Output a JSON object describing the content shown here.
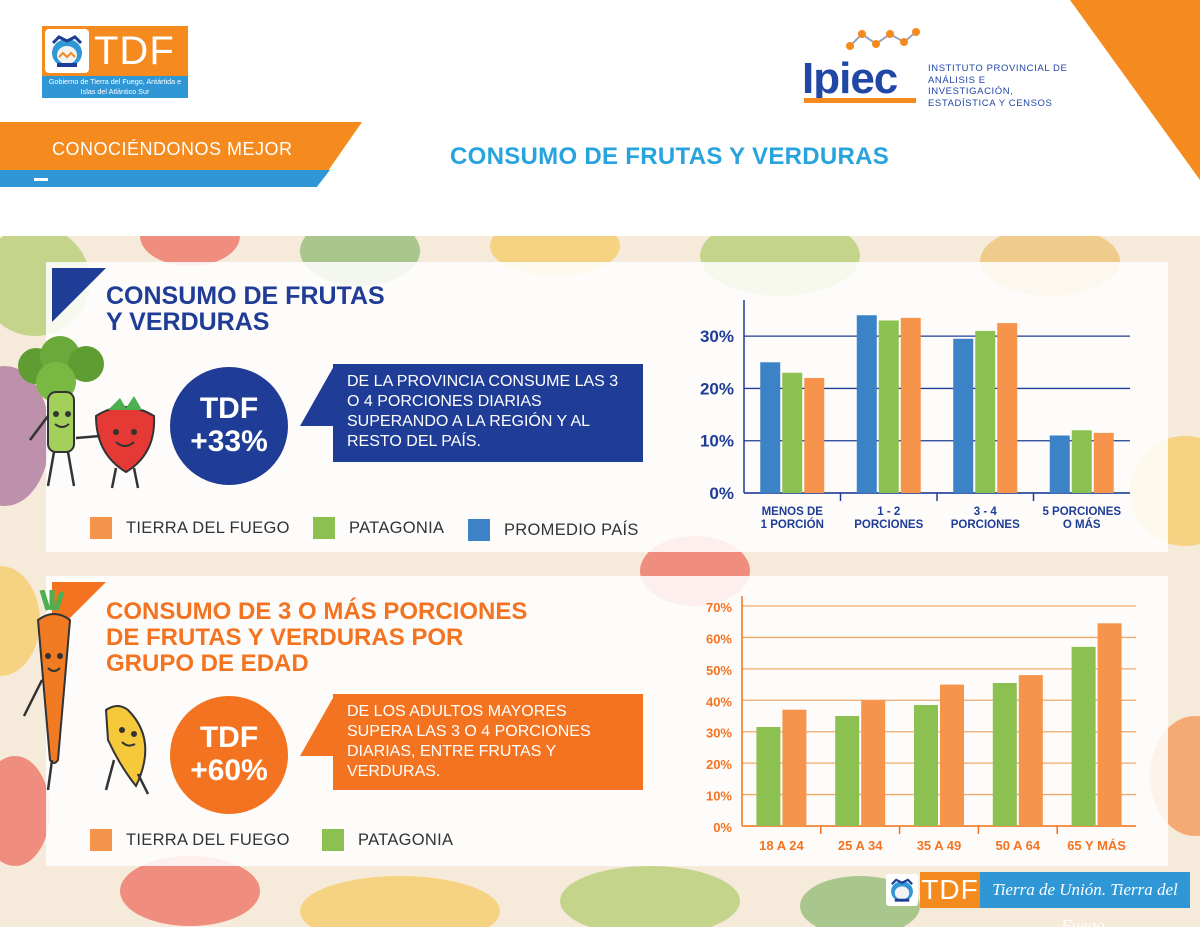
{
  "header": {
    "tdf_logo_text": "TDF",
    "tdf_logo_subtitle": "Gobierno de Tierra del Fuego, Antártida e Islas del Atlántico Sur",
    "ipiec_logo_text": "Ipiec",
    "ipiec_institute": [
      "INSTITUTO PROVINCIAL DE",
      "ANÁLISIS E INVESTIGACIÓN,",
      "ESTADÍSTICA Y CENSOS"
    ],
    "section_label": "CONOCIÉNDONOS MEJOR",
    "title": "CONSUMO DE FRUTAS Y VERDURAS"
  },
  "panel1": {
    "title_lines": [
      "CONSUMO DE FRUTAS",
      "Y VERDURAS"
    ],
    "highlight_lines": [
      "TDF",
      "+33%"
    ],
    "description": "DE LA PROVINCIA CONSUME LAS 3 O 4 PORCIONES DIARIAS SUPERANDO A LA REGIÓN Y AL RESTO DEL PAÍS.",
    "legend": [
      "TIERRA DEL FUEGO",
      "PATAGONIA",
      "PROMEDIO PAÍS"
    ]
  },
  "panel2": {
    "title_lines": [
      "CONSUMO DE 3 O MÁS PORCIONES",
      "DE FRUTAS Y VERDURAS POR",
      "GRUPO DE EDAD"
    ],
    "highlight_lines": [
      "TDF",
      "+60%"
    ],
    "description": "DE LOS ADULTOS MAYORES SUPERA LAS 3 O 4 PORCIONES DIARIAS, ENTRE FRUTAS Y VERDURAS.",
    "legend": [
      "TIERRA DEL FUEGO",
      "PATAGONIA"
    ]
  },
  "footer": {
    "logo_text": "TDF",
    "slogan": "Tierra de Unión. Tierra del Fuego."
  },
  "colors": {
    "tierra_del_fuego": "#f5944a",
    "patagonia": "#8cc152",
    "promedio_pais": "#3b82c7",
    "navy": "#1f3c96",
    "orange": "#f47320",
    "cyan": "#27a3de"
  },
  "chart_data": [
    {
      "type": "bar",
      "categories": [
        [
          "MENOS DE",
          "1 PORCIÓN"
        ],
        [
          "1 - 2",
          "PORCIONES"
        ],
        [
          "3 - 4",
          "PORCIONES"
        ],
        [
          "5 PORCIONES",
          "O MÁS"
        ]
      ],
      "series": [
        {
          "name": "PROMEDIO PAÍS",
          "color": "#3b82c7",
          "values": [
            25,
            34,
            29.5,
            11
          ]
        },
        {
          "name": "PATAGONIA",
          "color": "#8cc152",
          "values": [
            23,
            33,
            31,
            12
          ]
        },
        {
          "name": "TIERRA DEL FUEGO",
          "color": "#f5944a",
          "values": [
            22,
            33.5,
            32.5,
            11.5
          ]
        }
      ],
      "yticks": [
        "0%",
        "10%",
        "20%",
        "30%"
      ],
      "ylim": [
        0,
        35
      ],
      "grid": true
    },
    {
      "type": "bar",
      "categories": [
        "18 A 24",
        "25 A 34",
        "35 A 49",
        "50 A 64",
        "65 Y MÁS"
      ],
      "series": [
        {
          "name": "PATAGONIA",
          "color": "#8cc152",
          "values": [
            31.5,
            35,
            38.5,
            45.5,
            57
          ]
        },
        {
          "name": "TIERRA DEL FUEGO",
          "color": "#f5944a",
          "values": [
            37,
            40,
            45,
            48,
            64.5
          ]
        }
      ],
      "yticks": [
        "0%",
        "10%",
        "20%",
        "30%",
        "40%",
        "50%",
        "60%",
        "70%"
      ],
      "ylim": [
        0,
        70
      ],
      "grid": true
    }
  ]
}
